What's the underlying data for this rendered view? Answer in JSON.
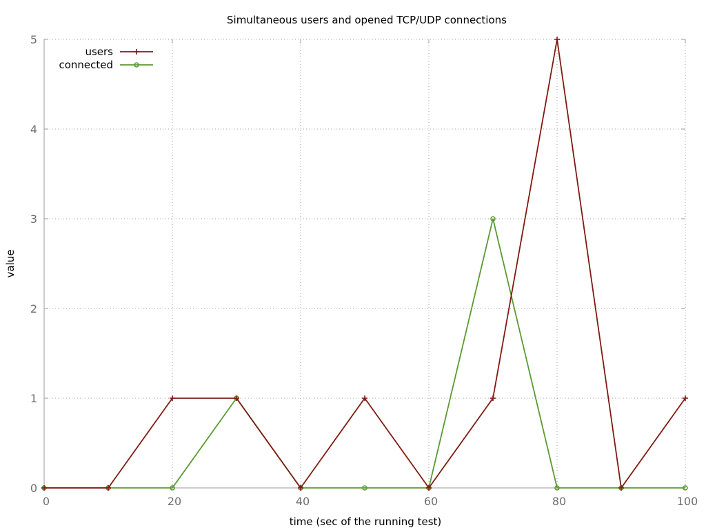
{
  "chart_data": {
    "type": "line",
    "title": "Simultaneous users and opened TCP/UDP connections",
    "xlabel": "time (sec of the running test)",
    "ylabel": "value",
    "x": [
      0,
      10,
      20,
      30,
      40,
      50,
      60,
      70,
      80,
      90,
      100
    ],
    "xlim": [
      0,
      100
    ],
    "ylim": [
      0,
      5
    ],
    "x_ticks": [
      "0",
      "20",
      "40",
      "60",
      "80",
      "100"
    ],
    "y_ticks": [
      "0",
      "1",
      "2",
      "3",
      "4",
      "5"
    ],
    "grid": true,
    "legend_position": "top-left",
    "series": [
      {
        "name": "users",
        "values": [
          0,
          0,
          1,
          1,
          0,
          1,
          0,
          1,
          5,
          0,
          1
        ],
        "color": "#7f1a10",
        "marker": "plus"
      },
      {
        "name": "connected",
        "values": [
          0,
          0,
          0,
          1,
          0,
          0,
          0,
          3,
          0,
          0,
          0
        ],
        "color": "#5a9a31",
        "marker": "circle"
      }
    ]
  }
}
